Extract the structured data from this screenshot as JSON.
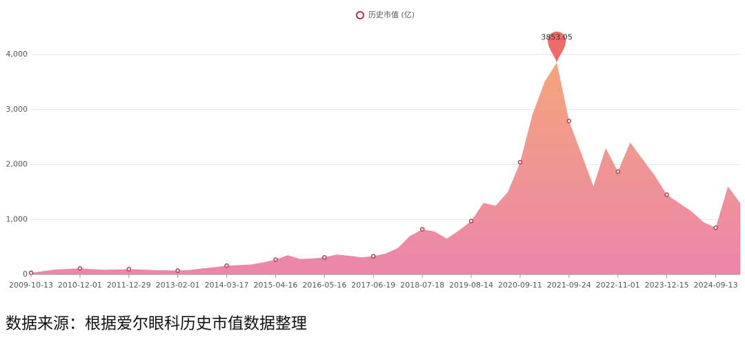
{
  "chart_data": {
    "type": "area",
    "categories": [
      "2009-10-13",
      null,
      null,
      null,
      "2010-12-01",
      null,
      null,
      null,
      "2011-12-29",
      null,
      null,
      null,
      "2013-02-01",
      null,
      null,
      null,
      "2014-03-17",
      null,
      null,
      null,
      "2015-04-16",
      null,
      null,
      null,
      "2016-05-16",
      null,
      null,
      null,
      "2017-06-19",
      null,
      null,
      null,
      "2018-07-18",
      null,
      null,
      null,
      "2019-08-14",
      null,
      null,
      null,
      "2020-09-11",
      null,
      null,
      null,
      "2021-09-24",
      null,
      null,
      null,
      "2022-11-01",
      null,
      null,
      null,
      "2023-12-15",
      null,
      null,
      null,
      "2024-09-13",
      null,
      null
    ],
    "series": [
      {
        "name": "历史市值 (亿)",
        "color": "#b8334a",
        "values": [
          30,
          60,
          90,
          100,
          110,
          95,
          85,
          90,
          95,
          90,
          80,
          75,
          70,
          80,
          110,
          130,
          160,
          170,
          180,
          220,
          270,
          350,
          280,
          290,
          310,
          360,
          340,
          310,
          330,
          380,
          480,
          700,
          820,
          780,
          650,
          800,
          970,
          1300,
          1250,
          1500,
          2040,
          2900,
          3500,
          3853.05,
          2790,
          2200,
          1600,
          2300,
          1870,
          2400,
          2100,
          1800,
          1450,
          1300,
          1150,
          950,
          850,
          1600,
          1300
        ]
      }
    ],
    "ylim": [
      0,
      4000
    ],
    "yticks": [
      0,
      {
        "value": 1000,
        "label": "1,000"
      },
      {
        "value": 2000,
        "label": "2,000"
      },
      {
        "value": 3000,
        "label": "3,000"
      },
      {
        "value": 4000,
        "label": "4,000"
      }
    ],
    "grid": true,
    "fill_top": "#f4a47c",
    "fill_bottom": "#ec86aa",
    "pin_color": "#ef6a6a"
  },
  "source": "数据来源：根据爱尔眼科历史市值数据整理"
}
